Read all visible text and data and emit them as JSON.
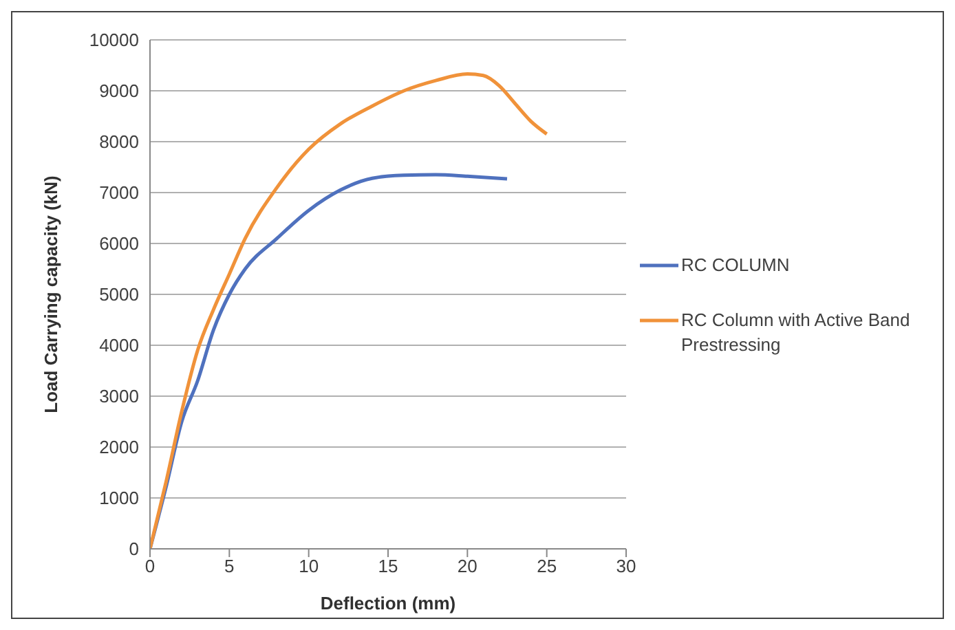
{
  "chart_data": {
    "type": "line",
    "xlabel": "Deflection (mm)",
    "ylabel": "Load Carrying capacity (kN)",
    "xlim": [
      0,
      30
    ],
    "xticks": [
      0,
      5,
      10,
      15,
      20,
      25,
      30
    ],
    "ylim": [
      0,
      10000
    ],
    "yticks": [
      0,
      1000,
      2000,
      3000,
      4000,
      5000,
      6000,
      7000,
      8000,
      9000,
      10000
    ],
    "grid": "y",
    "legend": "right",
    "marker": "none",
    "line_style": "solid",
    "series": [
      {
        "name": "RC COLUMN",
        "color": "#4f71be",
        "x": [
          0,
          1,
          2,
          3,
          4,
          5,
          6,
          8,
          10,
          12,
          14,
          16,
          18,
          20,
          22.5
        ],
        "values": [
          0,
          1200,
          2500,
          3300,
          4300,
          5000,
          5500,
          6100,
          6650,
          7050,
          7280,
          7340,
          7350,
          7320,
          7270
        ]
      },
      {
        "name": "RC Column with Active Band Prestressing",
        "color": "#f0923a",
        "x": [
          0,
          1,
          2,
          3,
          4,
          5,
          6,
          8,
          10,
          12,
          14,
          16,
          18,
          20,
          21,
          22,
          23,
          24,
          25
        ],
        "values": [
          0,
          1300,
          2700,
          3900,
          4700,
          5400,
          6100,
          7100,
          7850,
          8350,
          8700,
          9000,
          9200,
          9330,
          9300,
          9100,
          8750,
          8400,
          8150
        ]
      }
    ]
  }
}
